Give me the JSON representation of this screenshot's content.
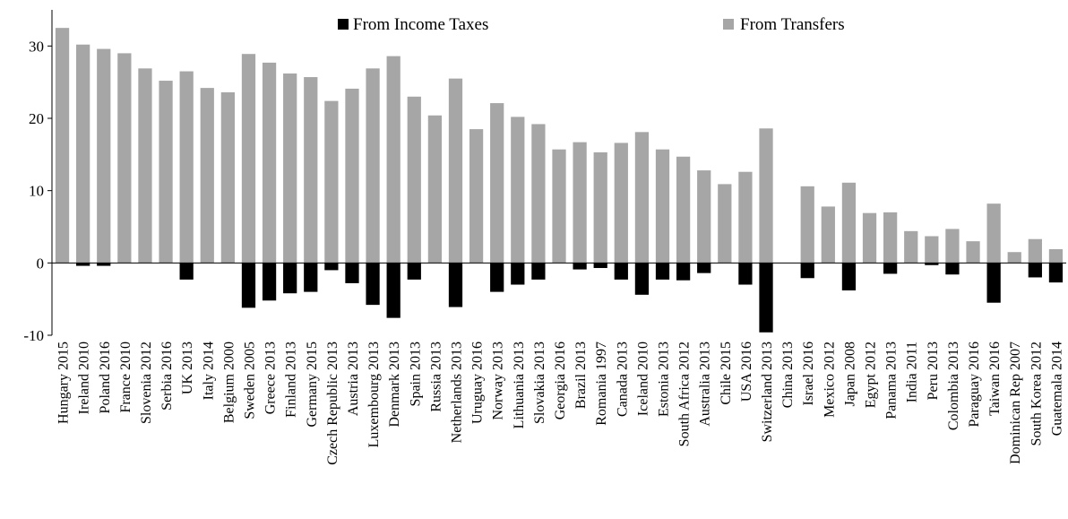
{
  "chart_data": {
    "type": "bar",
    "title": "",
    "xlabel": "",
    "ylabel": "",
    "ylim": [
      -10,
      35
    ],
    "yticks": [
      -10,
      0,
      10,
      20,
      30
    ],
    "grid": false,
    "legend_position": "top",
    "categories": [
      "Hungary 2015",
      "Ireland 2010",
      "Poland 2016",
      "France 2010",
      "Slovenia 2012",
      "Serbia 2016",
      "UK 2013",
      "Italy 2014",
      "Belgium 2000",
      "Sweden 2005",
      "Greece 2013",
      "Finland 2013",
      "Germany 2015",
      "Czech Republic 2013",
      "Austria 2013",
      "Luxembourg 2013",
      "Denmark 2013",
      "Spain 2013",
      "Russia 2013",
      "Netherlands 2013",
      "Uruguay 2016",
      "Norway 2013",
      "Lithuania 2013",
      "Slovakia 2013",
      "Georgia 2016",
      "Brazil 2013",
      "Romania 1997",
      "Canada 2013",
      "Iceland 2010",
      "Estonia 2013",
      "South Africa 2012",
      "Australia 2013",
      "Chile 2015",
      "USA 2016",
      "Switzerland 2013",
      "China 2013",
      "Israel 2016",
      "Mexico 2012",
      "Japan 2008",
      "Egypt 2012",
      "Panama 2013",
      "India 2011",
      "Peru 2013",
      "Colombia 2013",
      "Paraguay 2016",
      "Taiwan 2016",
      "Dominican Rep 2007",
      "South Korea 2012",
      "Guatemala 2014"
    ],
    "series": [
      {
        "name": "From Income Taxes",
        "color": "#000000",
        "values": [
          0,
          -0.4,
          -0.4,
          0,
          0,
          0,
          -2.3,
          0,
          0,
          -6.2,
          -5.2,
          -4.2,
          -4.0,
          -1.0,
          -2.8,
          -5.8,
          -7.6,
          -2.3,
          0,
          -6.1,
          0,
          -4.0,
          -3.0,
          -2.3,
          0,
          -0.9,
          -0.7,
          -2.3,
          -4.4,
          -2.3,
          -2.4,
          -1.4,
          0,
          -3.0,
          -9.6,
          0,
          -2.1,
          0,
          -3.8,
          0,
          -1.5,
          0,
          -0.3,
          -1.6,
          0,
          -5.5,
          0,
          -2.0,
          -2.7
        ]
      },
      {
        "name": "From Transfers",
        "color": "#a6a6a6",
        "values": [
          32.5,
          30.2,
          29.6,
          29.0,
          26.9,
          25.2,
          26.5,
          24.2,
          23.6,
          28.9,
          27.7,
          26.2,
          25.7,
          22.4,
          24.1,
          26.9,
          28.6,
          23.0,
          20.4,
          25.5,
          18.5,
          22.1,
          20.2,
          19.2,
          15.7,
          16.7,
          15.3,
          16.6,
          18.1,
          15.7,
          14.7,
          12.8,
          10.9,
          12.6,
          18.6,
          0,
          10.6,
          7.8,
          11.1,
          6.9,
          7.0,
          4.4,
          3.7,
          4.7,
          3.0,
          8.2,
          1.5,
          3.3,
          1.9
        ]
      }
    ]
  }
}
